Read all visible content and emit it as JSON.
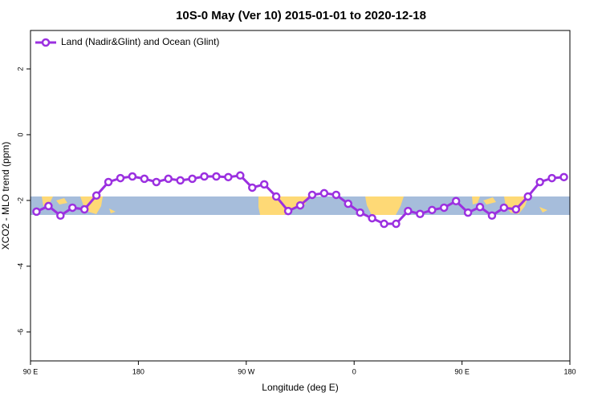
{
  "chart_data": {
    "type": "line",
    "title": "10S-0 May (Ver 10)   2015-01-01 to 2020-12-18",
    "xlabel": "Longitude (deg E)",
    "ylabel": "XCO2 - MLO trend (ppm)",
    "xlim": [
      90,
      540
    ],
    "ylim": [
      -6.88,
      3.17
    ],
    "xticks": [
      {
        "value": 90,
        "label": "90 E"
      },
      {
        "value": 180,
        "label": "180"
      },
      {
        "value": 270,
        "label": "90 W"
      },
      {
        "value": 360,
        "label": "0"
      },
      {
        "value": 450,
        "label": "90 E"
      },
      {
        "value": 540,
        "label": "180"
      }
    ],
    "yticks": [
      -6,
      -4,
      -2,
      0,
      2
    ],
    "legend": "top-left",
    "x": [
      95,
      105,
      115,
      125,
      135,
      145,
      155,
      165,
      175,
      185,
      195,
      205,
      215,
      225,
      235,
      245,
      255,
      265,
      275,
      285,
      295,
      305,
      315,
      325,
      335,
      345,
      355,
      365,
      375,
      385,
      395,
      405,
      415,
      425,
      435,
      445,
      455,
      465,
      475,
      485,
      495,
      505,
      515,
      525,
      535
    ],
    "series": [
      {
        "name": "Land (Nadir&Glint) and Ocean (Glint)",
        "color": "#9b30e0",
        "values": [
          -2.34,
          -2.17,
          -2.46,
          -2.22,
          -2.27,
          -1.85,
          -1.44,
          -1.32,
          -1.27,
          -1.34,
          -1.44,
          -1.34,
          -1.39,
          -1.34,
          -1.27,
          -1.27,
          -1.29,
          -1.24,
          -1.61,
          -1.51,
          -1.88,
          -2.32,
          -2.15,
          -1.83,
          -1.78,
          -1.83,
          -2.1,
          -2.37,
          -2.54,
          -2.71,
          -2.71,
          -2.32,
          -2.41,
          -2.29,
          -2.22,
          -2.02,
          -2.37,
          -2.2,
          -2.46,
          -2.22,
          -2.27,
          -1.88,
          -1.44,
          -1.32,
          -1.29
        ]
      }
    ]
  }
}
